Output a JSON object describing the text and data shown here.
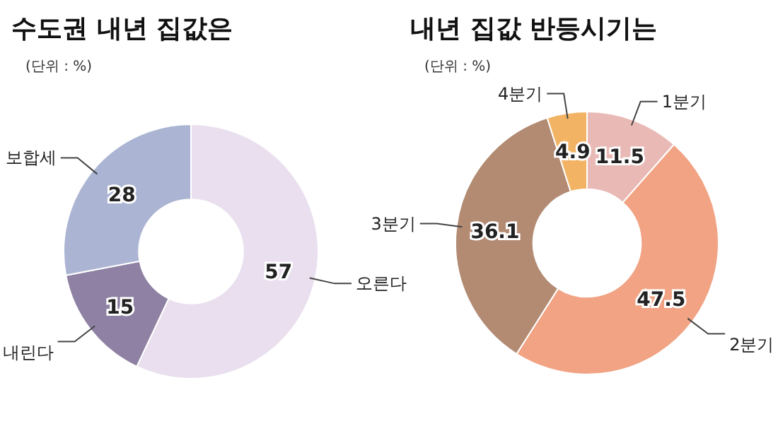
{
  "chart_data": [
    {
      "type": "donut",
      "title": "수도권 내년 집값은",
      "subtitle": "(단위 : %)",
      "categories": [
        "오른다",
        "내린다",
        "보합세"
      ],
      "values": [
        57,
        15,
        28
      ],
      "colors": [
        "#e9dfee",
        "#8e81a3",
        "#abb5d3"
      ],
      "data_labels": true,
      "legend": false
    },
    {
      "type": "donut",
      "title": "내년 집값 반등시기는",
      "subtitle": "(단위 : %)",
      "categories": [
        "1분기",
        "2분기",
        "3분기",
        "4분기"
      ],
      "values": [
        11.5,
        47.5,
        36.1,
        4.9
      ],
      "colors": [
        "#e9b9b5",
        "#f1a383",
        "#b38b73",
        "#f2b464"
      ],
      "data_labels": true,
      "legend": false
    }
  ]
}
